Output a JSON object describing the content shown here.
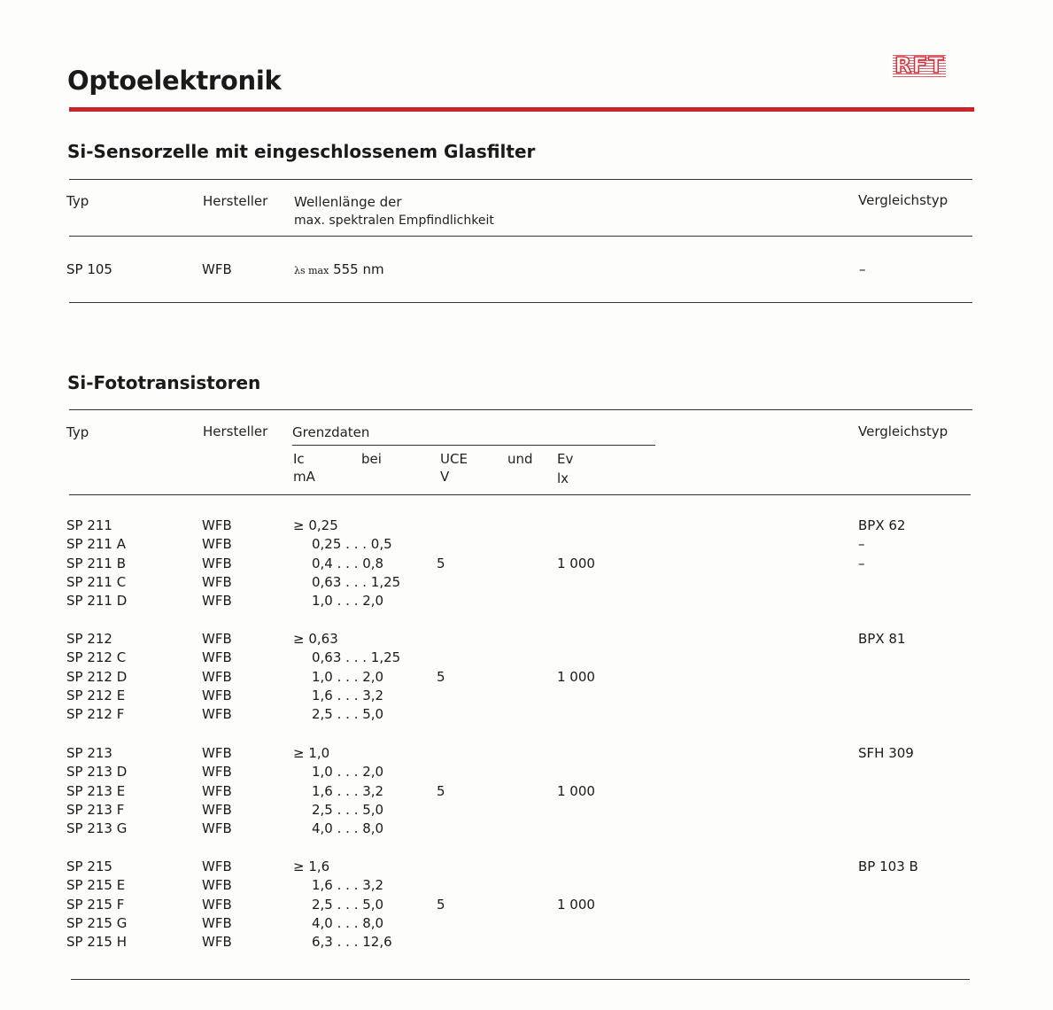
{
  "page_title": "Optoelektronik",
  "logo_text": "RFT",
  "accent_color": "#c8242b",
  "section1": {
    "title": "Si-Sensorzelle mit eingeschlossenem Glasfilter",
    "headers": {
      "typ": "Typ",
      "hersteller": "Hersteller",
      "wellen_1": "Wellenlänge der",
      "wellen_2": "max. spektralen Empfindlichkeit",
      "vergleich": "Vergleichstyp"
    },
    "row": {
      "typ": "SP 105",
      "hersteller": "WFB",
      "lambda_symbol": "λs max",
      "wellenlaenge": "555 nm",
      "vergleich": "–"
    }
  },
  "section2": {
    "title": "Si-Fototransistoren",
    "headers": {
      "typ": "Typ",
      "hersteller": "Hersteller",
      "grenzdaten": "Grenzdaten",
      "ic": "Ic",
      "ic_unit": "mA",
      "bei": "bei",
      "uce": "UCE",
      "uce_unit": "V",
      "und": "und",
      "ev": "Ev",
      "ev_unit": "lx",
      "vergleich": "Vergleichstyp"
    },
    "groups": [
      {
        "uce": "5",
        "ev": "1 000",
        "rows": [
          {
            "typ": "SP 211",
            "hersteller": "WFB",
            "ic": "≥ 0,25",
            "vergleich": "BPX 62"
          },
          {
            "typ": "SP 211 A",
            "hersteller": "WFB",
            "ic": "0,25 . . . 0,5",
            "vergleich": "–"
          },
          {
            "typ": "SP 211 B",
            "hersteller": "WFB",
            "ic": "0,4  . . . 0,8",
            "vergleich": "–"
          },
          {
            "typ": "SP 211 C",
            "hersteller": "WFB",
            "ic": "0,63 . . . 1,25"
          },
          {
            "typ": "SP 211 D",
            "hersteller": "WFB",
            "ic": "1,0  . . . 2,0"
          }
        ]
      },
      {
        "uce": "5",
        "ev": "1 000",
        "rows": [
          {
            "typ": "SP 212",
            "hersteller": "WFB",
            "ic": "≥ 0,63",
            "vergleich": "BPX 81"
          },
          {
            "typ": "SP 212 C",
            "hersteller": "WFB",
            "ic": "0,63 . . . 1,25"
          },
          {
            "typ": "SP 212 D",
            "hersteller": "WFB",
            "ic": "1,0  . . . 2,0"
          },
          {
            "typ": "SP 212 E",
            "hersteller": "WFB",
            "ic": "1,6  . . . 3,2"
          },
          {
            "typ": "SP 212 F",
            "hersteller": "WFB",
            "ic": "2,5  . . . 5,0"
          }
        ]
      },
      {
        "uce": "5",
        "ev": "1 000",
        "rows": [
          {
            "typ": "SP 213",
            "hersteller": "WFB",
            "ic": "≥ 1,0",
            "vergleich": "SFH 309"
          },
          {
            "typ": "SP 213 D",
            "hersteller": "WFB",
            "ic": "1,0  . . . 2,0"
          },
          {
            "typ": "SP 213 E",
            "hersteller": "WFB",
            "ic": "1,6  . . . 3,2"
          },
          {
            "typ": "SP 213 F",
            "hersteller": "WFB",
            "ic": "2,5  . . . 5,0"
          },
          {
            "typ": "SP 213 G",
            "hersteller": "WFB",
            "ic": "4,0  . . . 8,0"
          }
        ]
      },
      {
        "uce": "5",
        "ev": "1 000",
        "rows": [
          {
            "typ": "SP 215",
            "hersteller": "WFB",
            "ic": "≥ 1,6",
            "vergleich": "BP 103 B"
          },
          {
            "typ": "SP 215 E",
            "hersteller": "WFB",
            "ic": "1,6  . . . 3,2"
          },
          {
            "typ": "SP 215 F",
            "hersteller": "WFB",
            "ic": "2,5  . . . 5,0"
          },
          {
            "typ": "SP 215 G",
            "hersteller": "WFB",
            "ic": "4,0  . . . 8,0"
          },
          {
            "typ": "SP 215 H",
            "hersteller": "WFB",
            "ic": "6,3  . . . 12,6"
          }
        ]
      }
    ]
  }
}
